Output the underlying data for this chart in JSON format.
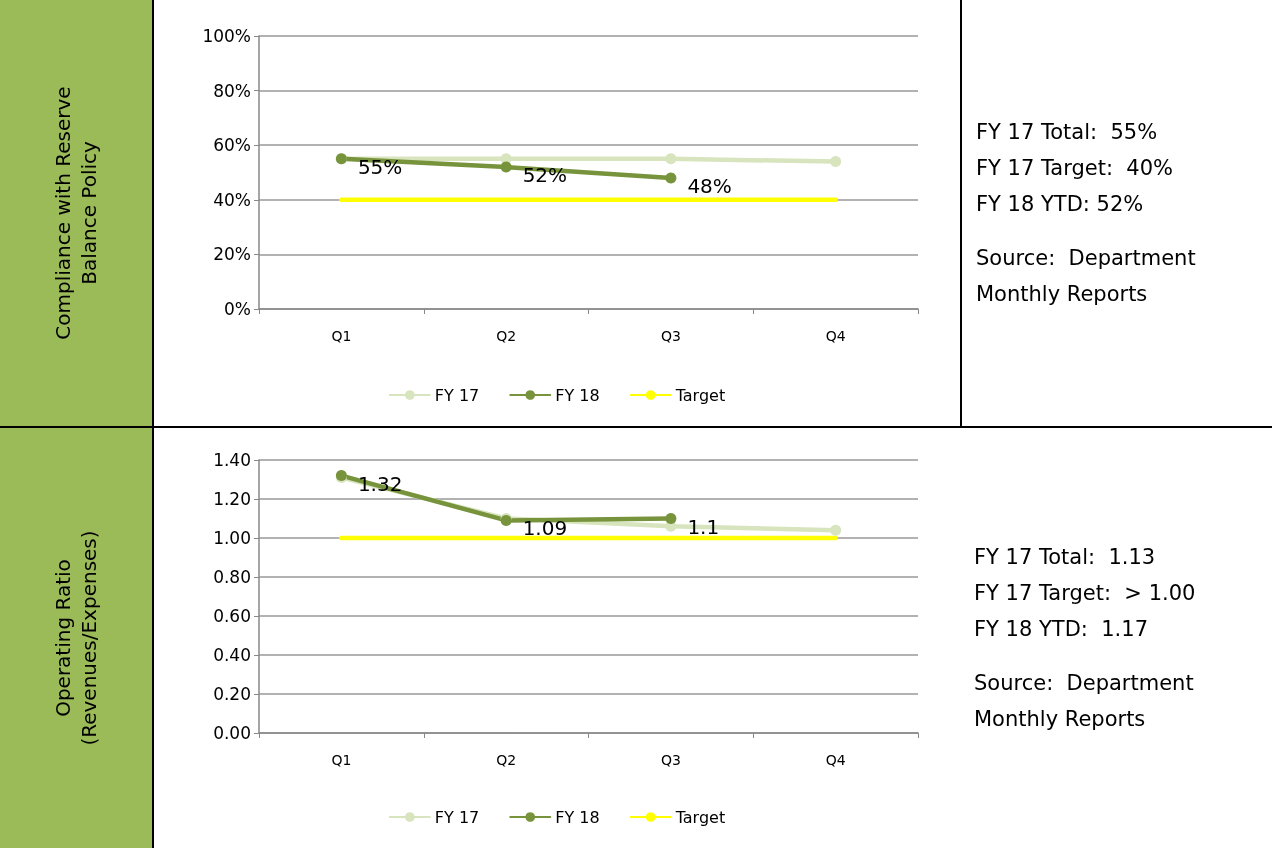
{
  "chart_data": [
    {
      "type": "line",
      "ylabel": "Compliance with Reserve Balance Policy",
      "categories": [
        "Q1",
        "Q2",
        "Q3",
        "Q4"
      ],
      "series": [
        {
          "name": "FY 17",
          "color": "#d7e4bd",
          "values": [
            55,
            55,
            55,
            54
          ]
        },
        {
          "name": "FY 18",
          "color": "#77933c",
          "values": [
            55,
            52,
            48,
            null
          ],
          "value_labels": [
            "55%",
            "52%",
            "48%",
            null
          ]
        },
        {
          "name": "Target",
          "color": "#ffff00",
          "values": [
            40,
            40,
            40,
            40
          ],
          "marker": "none"
        }
      ],
      "ylim": [
        0,
        100
      ],
      "yticks": [
        {
          "value": 0,
          "label": "0%"
        },
        {
          "value": 20,
          "label": "20%"
        },
        {
          "value": 40,
          "label": "40%"
        },
        {
          "value": 60,
          "label": "60%"
        },
        {
          "value": 80,
          "label": "80%"
        },
        {
          "value": 100,
          "label": "100%"
        }
      ],
      "grid": "y",
      "legend": "bottom",
      "marker": "circle",
      "line_style": "solid",
      "annotations": [
        "FY 17 Total:  55%",
        "FY 17 Target:  40%",
        "FY 18 YTD: 52%",
        "Source:  Department Monthly Reports"
      ]
    },
    {
      "type": "line",
      "ylabel": "Operating Ratio (Revenues/Expenses)",
      "categories": [
        "Q1",
        "Q2",
        "Q3",
        "Q4"
      ],
      "series": [
        {
          "name": "FY 17",
          "color": "#d7e4bd",
          "values": [
            1.31,
            1.1,
            1.06,
            1.04
          ]
        },
        {
          "name": "FY 18",
          "color": "#77933c",
          "values": [
            1.32,
            1.09,
            1.1,
            null
          ],
          "value_labels": [
            "1.32",
            "1.09",
            "1.1",
            null
          ]
        },
        {
          "name": "Target",
          "color": "#ffff00",
          "values": [
            1,
            1,
            1,
            1
          ],
          "marker": "none"
        }
      ],
      "ylim": [
        0,
        1.4
      ],
      "yticks": [
        {
          "value": 0,
          "label": "0.00"
        },
        {
          "value": 0.2,
          "label": "0.20"
        },
        {
          "value": 0.4,
          "label": "0.40"
        },
        {
          "value": 0.6,
          "label": "0.60"
        },
        {
          "value": 0.8,
          "label": "0.80"
        },
        {
          "value": 1,
          "label": "1.00"
        },
        {
          "value": 1.2,
          "label": "1.20"
        },
        {
          "value": 1.4,
          "label": "1.40"
        }
      ],
      "grid": "y",
      "legend": "bottom",
      "marker": "circle",
      "line_style": "solid",
      "annotations": [
        "FY 17 Total:  1.13",
        "FY 17 Target:  > 1.00",
        "FY 18 YTD:  1.17",
        "Source:  Department Monthly Reports"
      ]
    }
  ]
}
